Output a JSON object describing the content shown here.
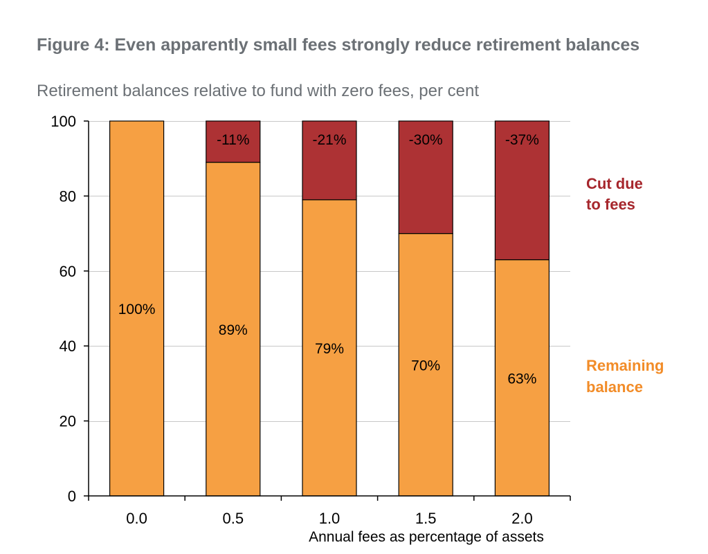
{
  "figure": {
    "title": "Figure 4: Even apparently small fees strongly reduce retirement balances",
    "subtitle": "Retirement balances relative to fund with zero fees, per cent"
  },
  "chart_data": {
    "type": "bar",
    "stacked": true,
    "title": "Figure 4: Even apparently small fees strongly reduce retirement balances",
    "subtitle": "Retirement balances relative to fund with zero fees, per cent",
    "xlabel": "Annual fees as percentage of assets",
    "ylabel": "",
    "categories": [
      "0.0",
      "0.5",
      "1.0",
      "1.5",
      "2.0"
    ],
    "ylim": [
      0,
      100
    ],
    "yticks": [
      0,
      20,
      40,
      60,
      80,
      100
    ],
    "grid": true,
    "series": [
      {
        "name": "Remaining balance",
        "legend_lines": [
          "Remaining",
          "balance"
        ],
        "color": "#f6a043",
        "label_color": "#f28c28",
        "values": [
          100,
          89,
          79,
          70,
          63
        ],
        "labels": [
          "100%",
          "89%",
          "79%",
          "70%",
          "63%"
        ]
      },
      {
        "name": "Cut due to fees",
        "legend_lines": [
          "Cut due",
          "to fees"
        ],
        "color": "#ad3234",
        "label_color": "#a6262c",
        "values": [
          0,
          11,
          21,
          30,
          37
        ],
        "labels": [
          "",
          "-11%",
          "-21%",
          "-30%",
          "-37%"
        ]
      }
    ],
    "legend_position": "right"
  }
}
